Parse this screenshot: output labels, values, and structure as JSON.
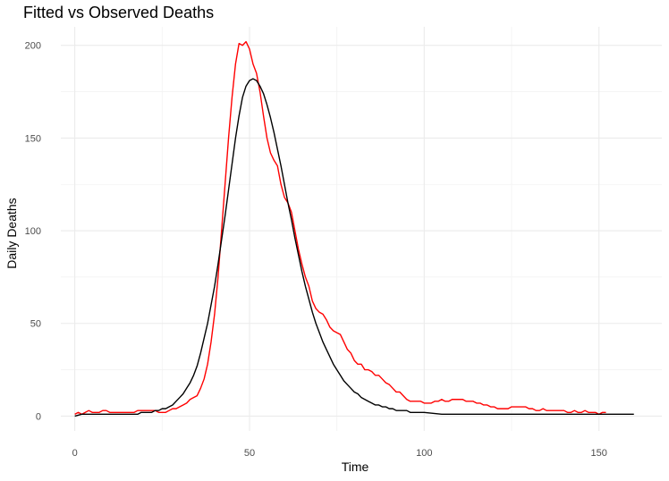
{
  "chart_data": {
    "type": "line",
    "title": "Fitted vs Observed Deaths",
    "xlabel": "Time",
    "ylabel": "Daily Deaths",
    "xlim": [
      -4,
      168
    ],
    "ylim": [
      -8,
      210
    ],
    "x_ticks": [
      0,
      50,
      100,
      150
    ],
    "y_ticks": [
      0,
      50,
      100,
      150,
      200
    ],
    "grid": true,
    "series": [
      {
        "color": "#ff0000",
        "points": [
          [
            0,
            1
          ],
          [
            1,
            2
          ],
          [
            2,
            1
          ],
          [
            3,
            2
          ],
          [
            4,
            3
          ],
          [
            5,
            2
          ],
          [
            6,
            2
          ],
          [
            7,
            2
          ],
          [
            8,
            3
          ],
          [
            9,
            3
          ],
          [
            10,
            2
          ],
          [
            11,
            2
          ],
          [
            12,
            2
          ],
          [
            13,
            2
          ],
          [
            14,
            2
          ],
          [
            15,
            2
          ],
          [
            16,
            2
          ],
          [
            17,
            2
          ],
          [
            18,
            3
          ],
          [
            19,
            3
          ],
          [
            20,
            3
          ],
          [
            21,
            3
          ],
          [
            22,
            3
          ],
          [
            23,
            3
          ],
          [
            24,
            2
          ],
          [
            25,
            2
          ],
          [
            26,
            2
          ],
          [
            27,
            3
          ],
          [
            28,
            4
          ],
          [
            29,
            4
          ],
          [
            30,
            5
          ],
          [
            31,
            6
          ],
          [
            32,
            7
          ],
          [
            33,
            9
          ],
          [
            34,
            10
          ],
          [
            35,
            11
          ],
          [
            36,
            15
          ],
          [
            37,
            20
          ],
          [
            38,
            28
          ],
          [
            39,
            40
          ],
          [
            40,
            55
          ],
          [
            41,
            75
          ],
          [
            42,
            100
          ],
          [
            43,
            125
          ],
          [
            44,
            150
          ],
          [
            45,
            172
          ],
          [
            46,
            190
          ],
          [
            47,
            201
          ],
          [
            48,
            200
          ],
          [
            49,
            202
          ],
          [
            50,
            198
          ],
          [
            51,
            190
          ],
          [
            52,
            185
          ],
          [
            53,
            175
          ],
          [
            54,
            162
          ],
          [
            55,
            150
          ],
          [
            56,
            142
          ],
          [
            57,
            138
          ],
          [
            58,
            135
          ],
          [
            59,
            125
          ],
          [
            60,
            118
          ],
          [
            61,
            115
          ],
          [
            62,
            110
          ],
          [
            63,
            100
          ],
          [
            64,
            90
          ],
          [
            65,
            82
          ],
          [
            66,
            75
          ],
          [
            67,
            70
          ],
          [
            68,
            62
          ],
          [
            69,
            58
          ],
          [
            70,
            56
          ],
          [
            71,
            55
          ],
          [
            72,
            52
          ],
          [
            73,
            48
          ],
          [
            74,
            46
          ],
          [
            75,
            45
          ],
          [
            76,
            44
          ],
          [
            77,
            40
          ],
          [
            78,
            36
          ],
          [
            79,
            34
          ],
          [
            80,
            30
          ],
          [
            81,
            28
          ],
          [
            82,
            28
          ],
          [
            83,
            25
          ],
          [
            84,
            25
          ],
          [
            85,
            24
          ],
          [
            86,
            22
          ],
          [
            87,
            22
          ],
          [
            88,
            20
          ],
          [
            89,
            18
          ],
          [
            90,
            17
          ],
          [
            91,
            15
          ],
          [
            92,
            13
          ],
          [
            93,
            13
          ],
          [
            94,
            11
          ],
          [
            95,
            9
          ],
          [
            96,
            8
          ],
          [
            97,
            8
          ],
          [
            98,
            8
          ],
          [
            99,
            8
          ],
          [
            100,
            7
          ],
          [
            101,
            7
          ],
          [
            102,
            7
          ],
          [
            103,
            8
          ],
          [
            104,
            8
          ],
          [
            105,
            9
          ],
          [
            106,
            8
          ],
          [
            107,
            8
          ],
          [
            108,
            9
          ],
          [
            109,
            9
          ],
          [
            110,
            9
          ],
          [
            111,
            9
          ],
          [
            112,
            8
          ],
          [
            113,
            8
          ],
          [
            114,
            8
          ],
          [
            115,
            7
          ],
          [
            116,
            7
          ],
          [
            117,
            6
          ],
          [
            118,
            6
          ],
          [
            119,
            5
          ],
          [
            120,
            5
          ],
          [
            121,
            4
          ],
          [
            122,
            4
          ],
          [
            123,
            4
          ],
          [
            124,
            4
          ],
          [
            125,
            5
          ],
          [
            126,
            5
          ],
          [
            127,
            5
          ],
          [
            128,
            5
          ],
          [
            129,
            5
          ],
          [
            130,
            4
          ],
          [
            131,
            4
          ],
          [
            132,
            3
          ],
          [
            133,
            3
          ],
          [
            134,
            4
          ],
          [
            135,
            3
          ],
          [
            136,
            3
          ],
          [
            137,
            3
          ],
          [
            138,
            3
          ],
          [
            139,
            3
          ],
          [
            140,
            3
          ],
          [
            141,
            2
          ],
          [
            142,
            2
          ],
          [
            143,
            3
          ],
          [
            144,
            2
          ],
          [
            145,
            2
          ],
          [
            146,
            3
          ],
          [
            147,
            2
          ],
          [
            148,
            2
          ],
          [
            149,
            2
          ],
          [
            150,
            1
          ],
          [
            151,
            2
          ],
          [
            152,
            2
          ]
        ]
      },
      {
        "color": "#000000",
        "points": [
          [
            0,
            0
          ],
          [
            2,
            1
          ],
          [
            5,
            1
          ],
          [
            10,
            1
          ],
          [
            15,
            1
          ],
          [
            18,
            1
          ],
          [
            19,
            2
          ],
          [
            20,
            2
          ],
          [
            22,
            2
          ],
          [
            23,
            3
          ],
          [
            24,
            3
          ],
          [
            25,
            4
          ],
          [
            26,
            4
          ],
          [
            27,
            5
          ],
          [
            28,
            6
          ],
          [
            29,
            8
          ],
          [
            30,
            10
          ],
          [
            31,
            12
          ],
          [
            32,
            15
          ],
          [
            33,
            18
          ],
          [
            34,
            22
          ],
          [
            35,
            27
          ],
          [
            36,
            34
          ],
          [
            37,
            42
          ],
          [
            38,
            50
          ],
          [
            39,
            60
          ],
          [
            40,
            70
          ],
          [
            41,
            82
          ],
          [
            42,
            95
          ],
          [
            43,
            108
          ],
          [
            44,
            122
          ],
          [
            45,
            136
          ],
          [
            46,
            150
          ],
          [
            47,
            162
          ],
          [
            48,
            172
          ],
          [
            49,
            178
          ],
          [
            50,
            181
          ],
          [
            51,
            182
          ],
          [
            52,
            181
          ],
          [
            53,
            178
          ],
          [
            54,
            174
          ],
          [
            55,
            168
          ],
          [
            56,
            161
          ],
          [
            57,
            153
          ],
          [
            58,
            144
          ],
          [
            59,
            135
          ],
          [
            60,
            125
          ],
          [
            61,
            115
          ],
          [
            62,
            106
          ],
          [
            63,
            96
          ],
          [
            64,
            87
          ],
          [
            65,
            78
          ],
          [
            66,
            70
          ],
          [
            67,
            63
          ],
          [
            68,
            56
          ],
          [
            69,
            50
          ],
          [
            70,
            45
          ],
          [
            71,
            40
          ],
          [
            72,
            36
          ],
          [
            73,
            32
          ],
          [
            74,
            28
          ],
          [
            75,
            25
          ],
          [
            76,
            22
          ],
          [
            77,
            19
          ],
          [
            78,
            17
          ],
          [
            79,
            15
          ],
          [
            80,
            13
          ],
          [
            81,
            12
          ],
          [
            82,
            10
          ],
          [
            83,
            9
          ],
          [
            84,
            8
          ],
          [
            85,
            7
          ],
          [
            86,
            6
          ],
          [
            87,
            6
          ],
          [
            88,
            5
          ],
          [
            89,
            5
          ],
          [
            90,
            4
          ],
          [
            91,
            4
          ],
          [
            92,
            3
          ],
          [
            93,
            3
          ],
          [
            94,
            3
          ],
          [
            95,
            3
          ],
          [
            96,
            2
          ],
          [
            97,
            2
          ],
          [
            98,
            2
          ],
          [
            99,
            2
          ],
          [
            100,
            2
          ],
          [
            105,
            1
          ],
          [
            110,
            1
          ],
          [
            115,
            1
          ],
          [
            120,
            1
          ],
          [
            125,
            1
          ],
          [
            130,
            1
          ],
          [
            135,
            1
          ],
          [
            140,
            1
          ],
          [
            145,
            1
          ],
          [
            150,
            1
          ],
          [
            155,
            1
          ],
          [
            160,
            1
          ]
        ]
      }
    ]
  }
}
